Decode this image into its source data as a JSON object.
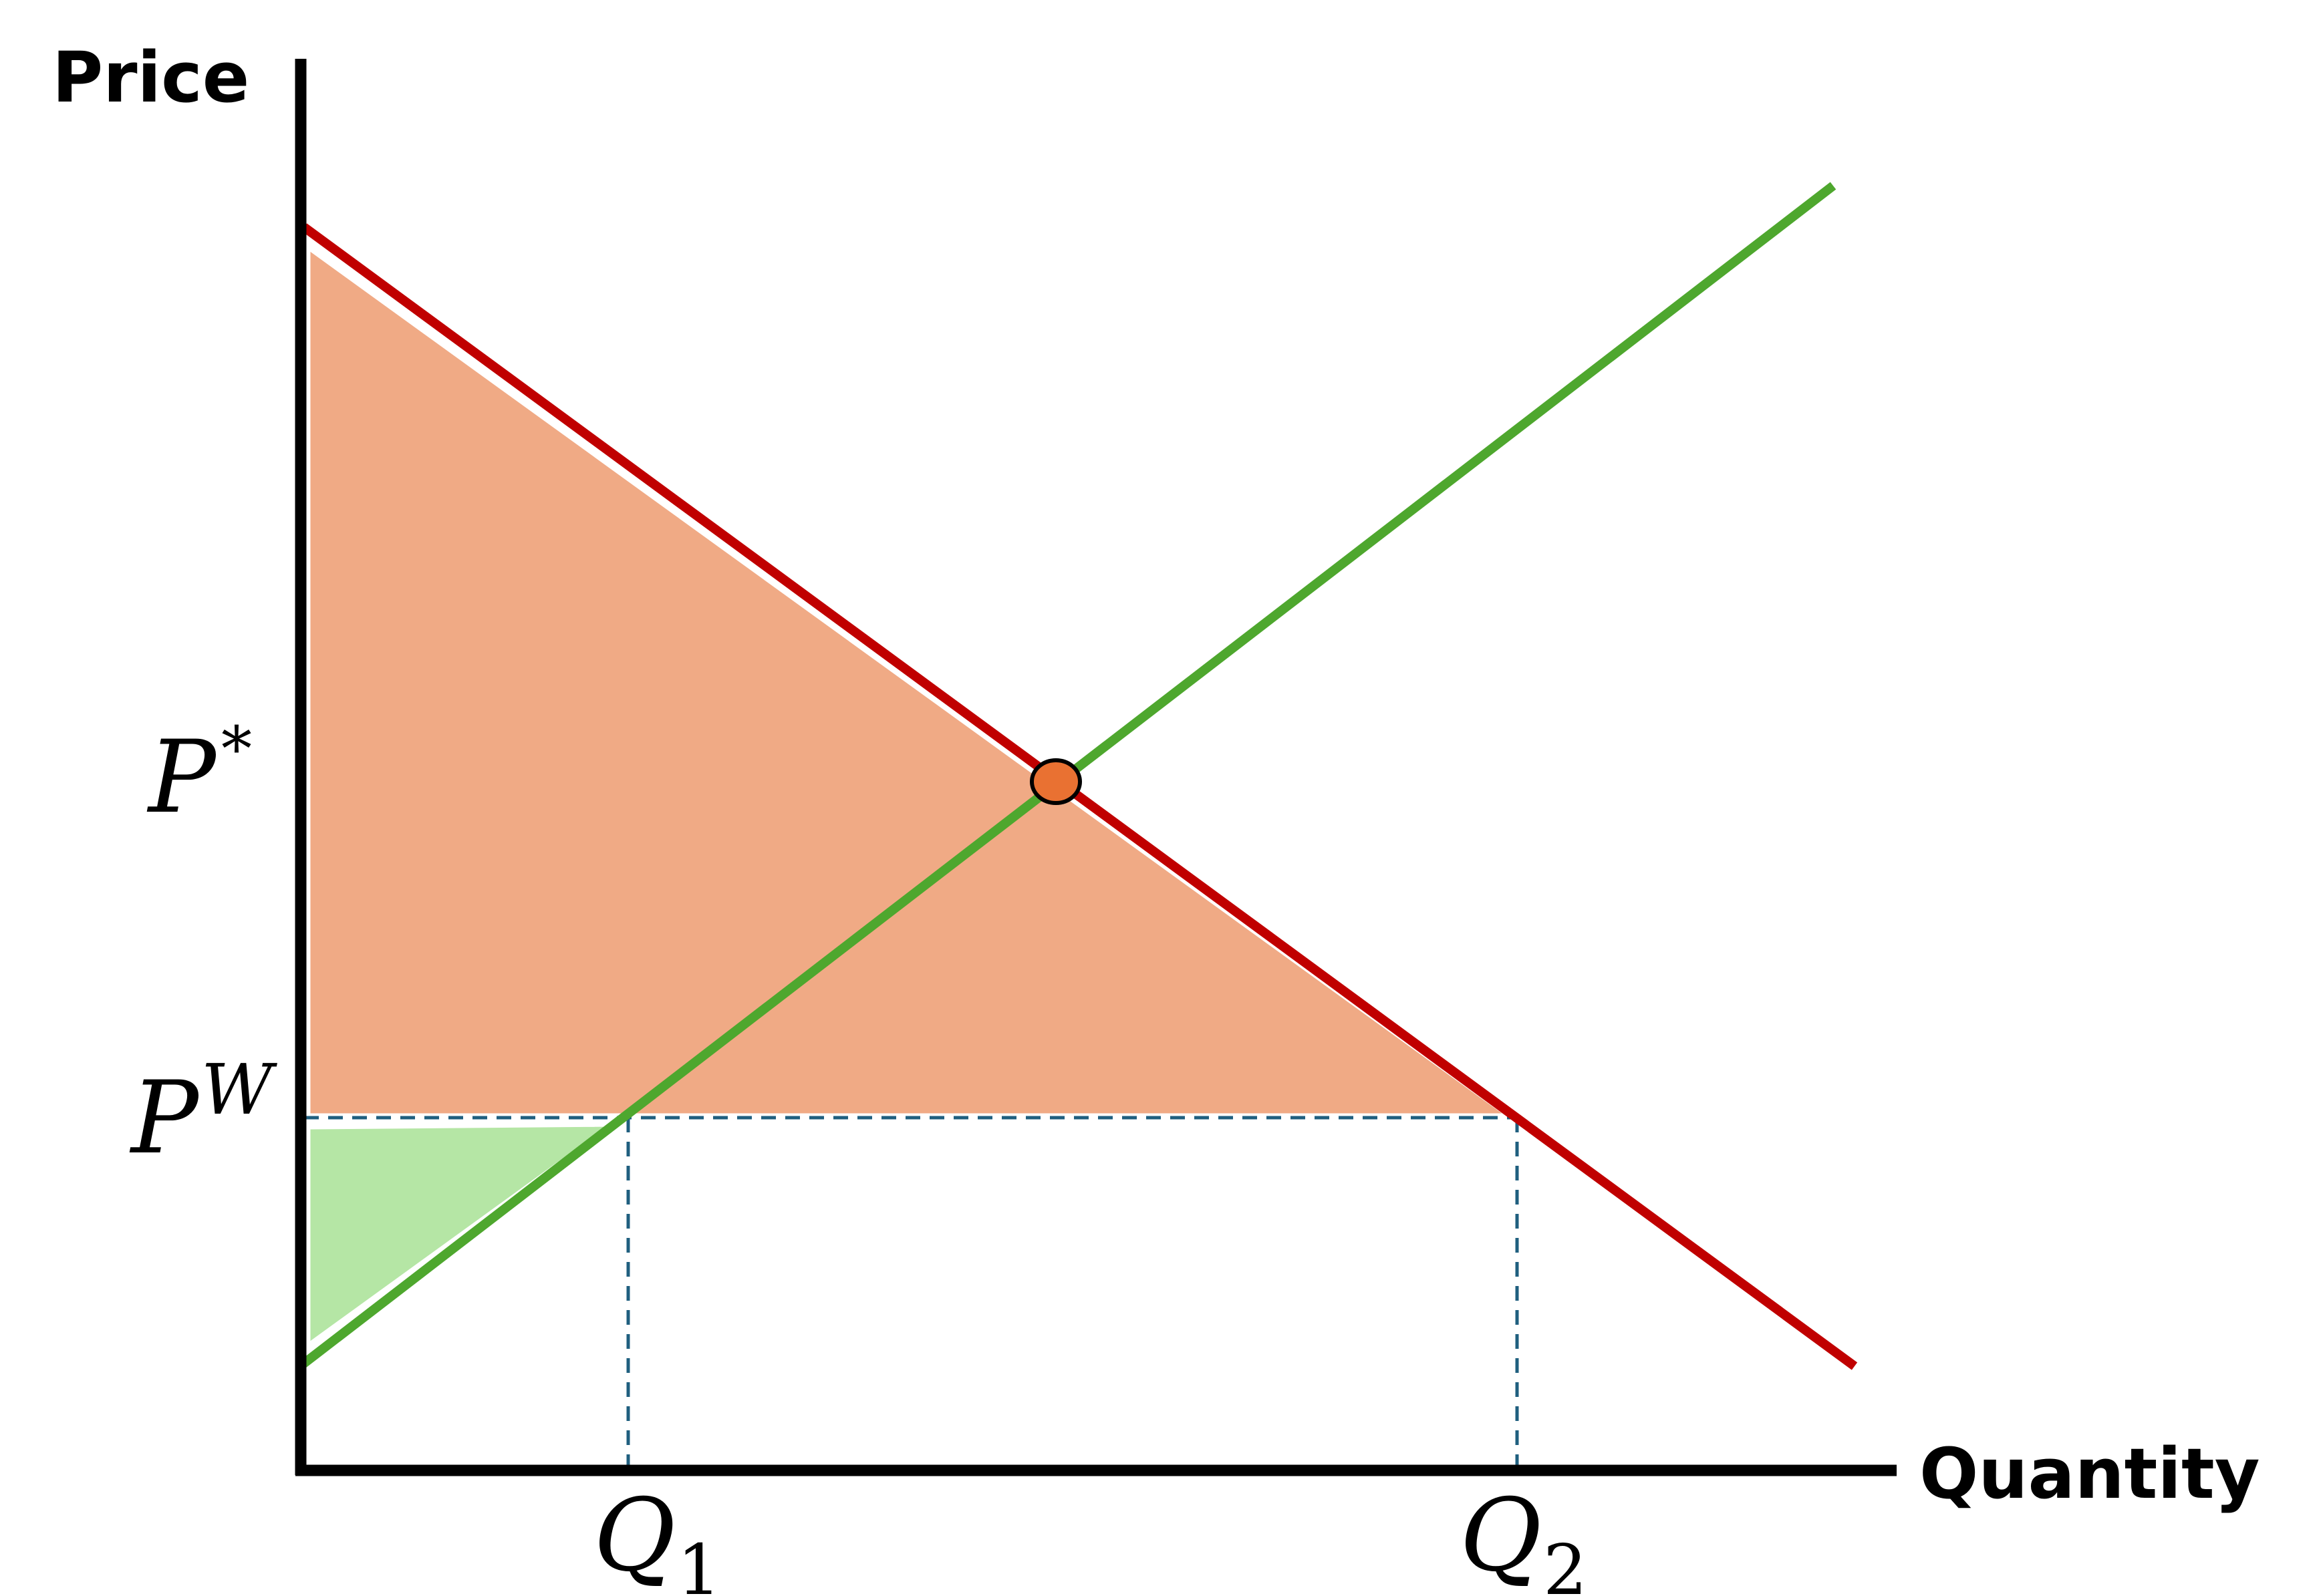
{
  "axes": {
    "y_label": "Price",
    "x_label": "Quantity"
  },
  "price_labels": {
    "p_star": {
      "base": "P",
      "sup": "*"
    },
    "p_world": {
      "base": "P",
      "sup": "W"
    }
  },
  "quantity_labels": {
    "q1": {
      "base": "Q",
      "sub": "1"
    },
    "q2": {
      "base": "Q",
      "sub": "2"
    }
  },
  "colors": {
    "demand": "#c00000",
    "supply": "#4ea72e",
    "consumer_surplus": "#f0aa85",
    "producer_surplus": "#b5e6a5",
    "equilibrium_point": "#e97132",
    "guide_lines": "#1f5f7f",
    "axis": "#000000"
  }
}
